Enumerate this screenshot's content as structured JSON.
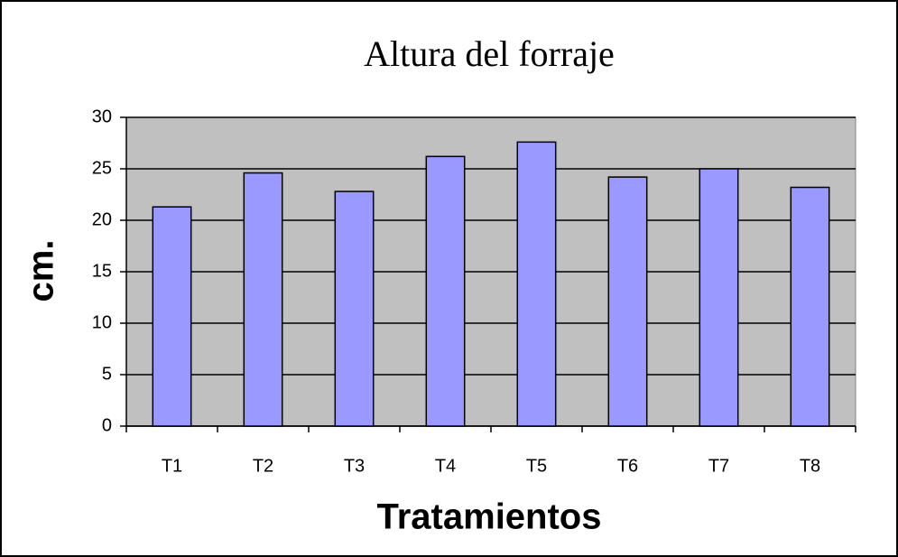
{
  "chart_data": {
    "type": "bar",
    "title": "Altura del forraje",
    "y_label": "cm.",
    "x_label": "Tratamientos",
    "categories": [
      "T1",
      "T2",
      "T3",
      "T4",
      "T5",
      "T6",
      "T7",
      "T8"
    ],
    "values": [
      21.3,
      24.6,
      22.8,
      26.2,
      27.6,
      24.2,
      25.0,
      23.2
    ],
    "color": "#9999ff",
    "ylim": [
      0,
      30
    ],
    "yticks": [
      0,
      5,
      10,
      15,
      20,
      25,
      30
    ],
    "grid": true
  }
}
